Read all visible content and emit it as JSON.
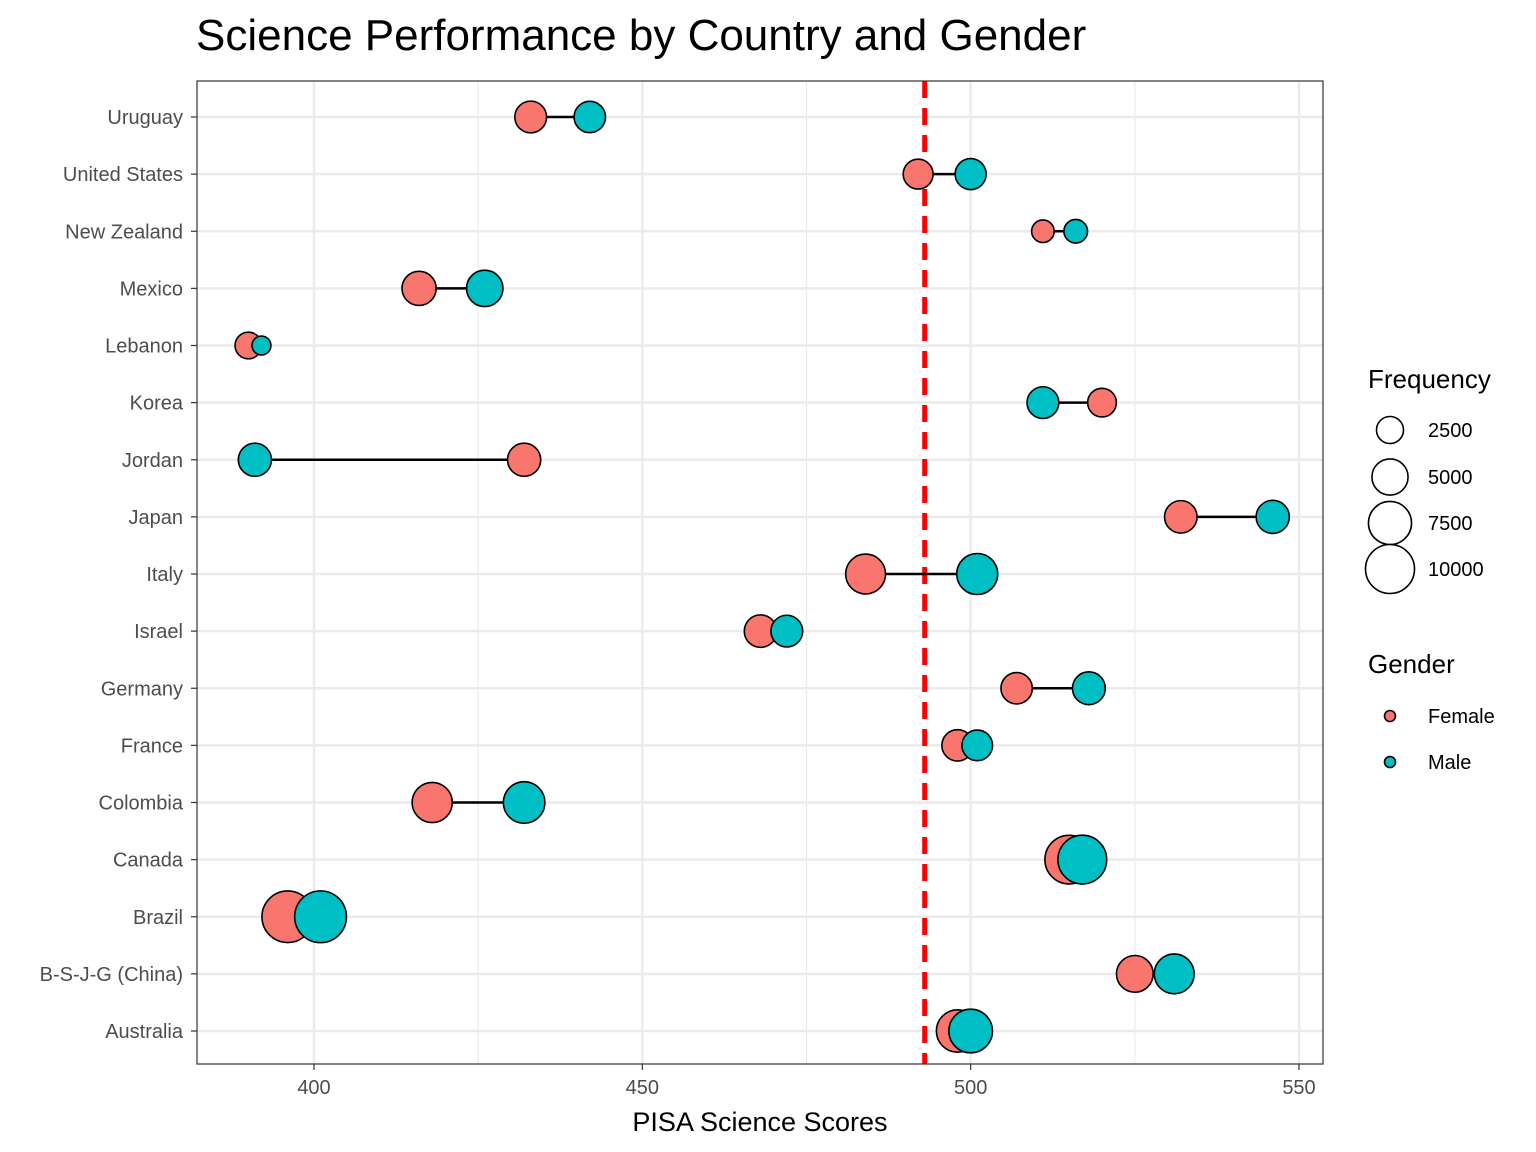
{
  "chart_data": {
    "type": "scatter",
    "subtype": "dumbbell",
    "title": "Science Performance by Country and Gender",
    "xlabel": "PISA Science Scores",
    "ylabel": "",
    "xlim": [
      382,
      553
    ],
    "xticks": [
      400,
      450,
      500,
      550
    ],
    "grid": true,
    "reference_line": {
      "x": 493,
      "style": "dashed",
      "color": "#FF0000"
    },
    "categories": [
      "Australia",
      "B-S-J-G (China)",
      "Brazil",
      "Canada",
      "Colombia",
      "France",
      "Germany",
      "Israel",
      "Italy",
      "Japan",
      "Jordan",
      "Korea",
      "Lebanon",
      "Mexico",
      "New Zealand",
      "United States",
      "Uruguay"
    ],
    "series": [
      {
        "name": "Female",
        "color": "#F8766D",
        "values": [
          498,
          525,
          396,
          515,
          418,
          498,
          507,
          468,
          484,
          532,
          432,
          520,
          390,
          416,
          511,
          492,
          433
        ],
        "frequency": [
          7200,
          5200,
          11200,
          9800,
          6400,
          3600,
          3600,
          3900,
          6300,
          3900,
          4100,
          2900,
          2400,
          4400,
          1600,
          3200,
          3700
        ]
      },
      {
        "name": "Male",
        "color": "#00BFC4",
        "values": [
          500,
          531,
          401,
          517,
          432,
          501,
          518,
          472,
          501,
          546,
          391,
          511,
          392,
          426,
          516,
          500,
          442
        ],
        "frequency": [
          7700,
          6300,
          11300,
          9900,
          6900,
          3400,
          4000,
          3700,
          6700,
          4100,
          4100,
          3700,
          1000,
          5100,
          1800,
          3500,
          3600
        ]
      }
    ],
    "legend": {
      "position": "right",
      "size_title": "Frequency",
      "size_breaks": [
        2500,
        5000,
        7500,
        10000
      ],
      "color_title": "Gender",
      "color_entries": [
        "Female",
        "Male"
      ]
    }
  }
}
